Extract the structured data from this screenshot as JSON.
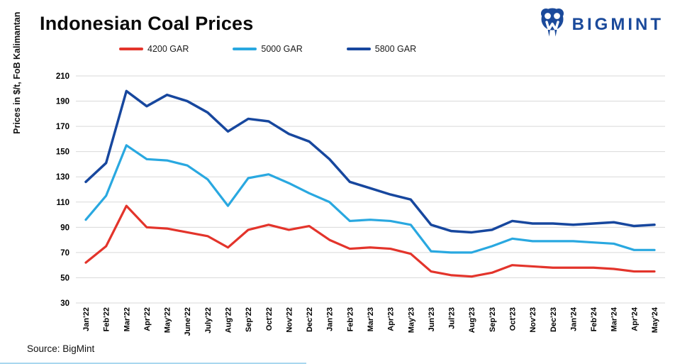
{
  "header": {
    "title": "Indonesian Coal Prices",
    "brand": "BIGMINT"
  },
  "axis": {
    "y_title": "Prices in $/t, FoB Kalimantan"
  },
  "source": "Source: BigMint",
  "colors": {
    "brand_blue": "#1b4a9b",
    "gridline": "#d9d9d9",
    "series_4200": "#e3342b",
    "series_5000": "#29a8e0",
    "series_5800": "#17479e",
    "bottom_accent": "#a9d7ef"
  },
  "chart_data": {
    "type": "line",
    "title": "Indonesian Coal Prices",
    "xlabel": "",
    "ylabel": "Prices in $/t, FoB Kalimantan",
    "ylim": [
      30,
      210
    ],
    "ytick_step": 20,
    "grid": true,
    "legend_position": "top",
    "categories": [
      "Jan'22",
      "Feb'22",
      "Mar'22",
      "Apr'22",
      "May'22",
      "June'22",
      "July'22",
      "Aug'22",
      "Sep'22",
      "Oct'22",
      "Nov'22",
      "Dec'22",
      "Jan'23",
      "Feb'23",
      "Mar'23",
      "Apr'23",
      "May'23",
      "Jun'23",
      "Jul'23",
      "Aug'23",
      "Sep'23",
      "Oct'23",
      "Nov'23",
      "Dec'23",
      "Jan'24",
      "Feb'24",
      "Mar'24",
      "Apr'24",
      "May'24"
    ],
    "series": [
      {
        "name": "4200 GAR",
        "color": "#e3342b",
        "stroke_width": 3.2,
        "values": [
          62,
          75,
          107,
          90,
          89,
          86,
          83,
          74,
          88,
          92,
          88,
          91,
          80,
          73,
          74,
          73,
          69,
          55,
          52,
          51,
          54,
          60,
          59,
          58,
          58,
          58,
          57,
          55,
          55
        ]
      },
      {
        "name": "5000 GAR",
        "color": "#29a8e0",
        "stroke_width": 3.2,
        "values": [
          96,
          115,
          155,
          144,
          143,
          139,
          128,
          107,
          129,
          132,
          125,
          117,
          110,
          95,
          96,
          95,
          92,
          71,
          70,
          70,
          75,
          81,
          79,
          79,
          79,
          78,
          77,
          72,
          72
        ]
      },
      {
        "name": "5800 GAR",
        "color": "#17479e",
        "stroke_width": 3.5,
        "values": [
          126,
          141,
          198,
          186,
          195,
          190,
          181,
          166,
          176,
          174,
          164,
          158,
          144,
          126,
          121,
          116,
          112,
          92,
          87,
          86,
          88,
          95,
          93,
          93,
          92,
          93,
          94,
          91,
          92
        ]
      }
    ]
  }
}
